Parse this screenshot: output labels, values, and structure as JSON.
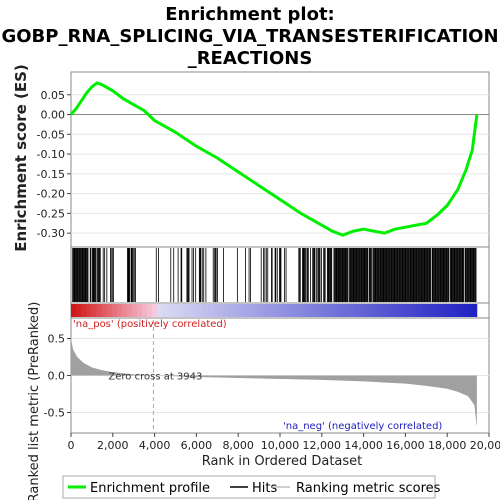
{
  "chart_data": [
    {
      "type": "line",
      "title_lines": [
        "Enrichment plot:",
        "GOBP_RNA_SPLICING_VIA_TRANSESTERIFICATION",
        "_REACTIONS"
      ],
      "ylabel": "Enrichment score (ES)",
      "xlim": [
        0,
        20000
      ],
      "ylim": [
        -0.33,
        0.1
      ],
      "yticks": [
        "0.05",
        "0.00",
        "-0.05",
        "-0.10",
        "-0.15",
        "-0.20",
        "-0.25",
        "-0.30"
      ],
      "ytick_values": [
        0.05,
        0.0,
        -0.05,
        -0.1,
        -0.15,
        -0.2,
        -0.25,
        -0.3
      ],
      "series": [
        {
          "name": "Enrichment profile",
          "color": "#00ee00",
          "x": [
            0,
            250,
            500,
            750,
            1000,
            1250,
            1500,
            2000,
            2500,
            3000,
            3500,
            4000,
            5000,
            6000,
            7000,
            8000,
            9000,
            10000,
            11000,
            12000,
            12500,
            13000,
            13500,
            14000,
            14500,
            15000,
            15500,
            16000,
            16500,
            17000,
            17500,
            18000,
            18500,
            18900,
            19200,
            19420
          ],
          "y": [
            0.0,
            0.015,
            0.035,
            0.055,
            0.07,
            0.08,
            0.075,
            0.06,
            0.04,
            0.025,
            0.01,
            -0.015,
            -0.045,
            -0.08,
            -0.11,
            -0.145,
            -0.18,
            -0.215,
            -0.25,
            -0.28,
            -0.295,
            -0.305,
            -0.295,
            -0.29,
            -0.295,
            -0.3,
            -0.29,
            -0.285,
            -0.28,
            -0.275,
            -0.255,
            -0.23,
            -0.19,
            -0.14,
            -0.09,
            0.0
          ]
        }
      ]
    },
    {
      "type": "rug",
      "description_name": "Hits",
      "hit_segments": [
        {
          "from": 80,
          "to": 1400,
          "density": 0.9
        },
        {
          "from": 1400,
          "to": 2200,
          "density": 0.35
        },
        {
          "from": 2700,
          "to": 3100,
          "density": 0.6
        },
        {
          "from": 3800,
          "to": 4200,
          "density": 0.3
        },
        {
          "from": 4600,
          "to": 8700,
          "density": 0.2
        },
        {
          "from": 9100,
          "to": 10300,
          "density": 0.35
        },
        {
          "from": 10900,
          "to": 12800,
          "density": 0.7
        },
        {
          "from": 12800,
          "to": 19400,
          "density": 0.95
        }
      ]
    },
    {
      "type": "area",
      "ylabel": "Ranked list metric (PreRanked)",
      "xlabel": "Rank in Ordered Dataset",
      "xlim": [
        0,
        20000
      ],
      "ylim": [
        -0.75,
        0.75
      ],
      "xticks": [
        "0",
        "2,000",
        "4,000",
        "6,000",
        "8,000",
        "10,000",
        "12,000",
        "14,000",
        "16,000",
        "18,000",
        "20,000"
      ],
      "xtick_values": [
        0,
        2000,
        4000,
        6000,
        8000,
        10000,
        12000,
        14000,
        16000,
        18000,
        20000
      ],
      "yticks": [
        "0.5",
        "0.0",
        "-0.5"
      ],
      "ytick_values": [
        0.5,
        0.0,
        -0.5
      ],
      "zero_cross_rank": 3943,
      "zero_cross_label": "Zero cross at 3943",
      "pos_label": "'na_pos' (positively correlated)",
      "neg_label": "'na_neg' (negatively correlated)",
      "metric_profile": {
        "x": [
          0,
          100,
          300,
          600,
          1000,
          1500,
          2000,
          3000,
          3943,
          6000,
          9000,
          12000,
          14000,
          16000,
          17000,
          18000,
          18500,
          19000,
          19300,
          19420
        ],
        "y": [
          0.5,
          0.35,
          0.25,
          0.17,
          0.11,
          0.07,
          0.045,
          0.015,
          0.0,
          -0.02,
          -0.04,
          -0.06,
          -0.08,
          -0.11,
          -0.14,
          -0.18,
          -0.22,
          -0.28,
          -0.4,
          -0.7
        ]
      },
      "colors": {
        "pos": "#d01818",
        "neg": "#2020c0",
        "fill": "#a0a0a0"
      }
    }
  ],
  "legend": {
    "items": [
      {
        "label": "Enrichment profile",
        "color": "#00ee00"
      },
      {
        "label": "Hits",
        "color": "#000000"
      },
      {
        "label": "Ranking metric scores",
        "color": "#c0c0c0"
      }
    ]
  }
}
